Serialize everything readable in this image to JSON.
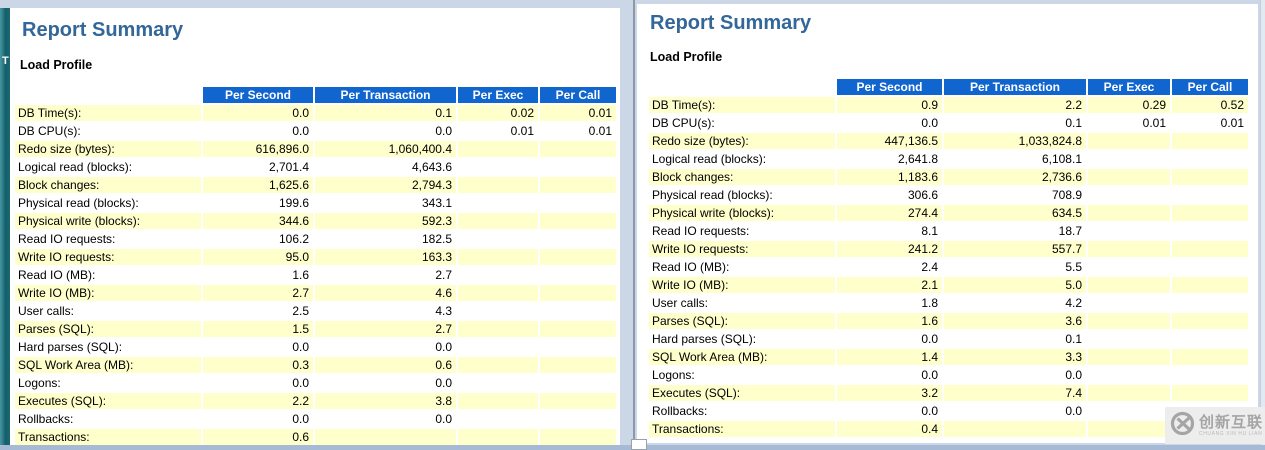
{
  "left_report": {
    "title": "Report Summary",
    "section_title": "Load Profile",
    "columns": [
      "Per Second",
      "Per Transaction",
      "Per Exec",
      "Per Call"
    ],
    "rows": [
      {
        "label": "DB Time(s):",
        "values": [
          "0.0",
          "0.1",
          "0.02",
          "0.01"
        ]
      },
      {
        "label": "DB CPU(s):",
        "values": [
          "0.0",
          "0.0",
          "0.01",
          "0.01"
        ]
      },
      {
        "label": "Redo size (bytes):",
        "values": [
          "616,896.0",
          "1,060,400.4",
          "",
          ""
        ]
      },
      {
        "label": "Logical read (blocks):",
        "values": [
          "2,701.4",
          "4,643.6",
          "",
          ""
        ]
      },
      {
        "label": "Block changes:",
        "values": [
          "1,625.6",
          "2,794.3",
          "",
          ""
        ]
      },
      {
        "label": "Physical read (blocks):",
        "values": [
          "199.6",
          "343.1",
          "",
          ""
        ]
      },
      {
        "label": "Physical write (blocks):",
        "values": [
          "344.6",
          "592.3",
          "",
          ""
        ]
      },
      {
        "label": "Read IO requests:",
        "values": [
          "106.2",
          "182.5",
          "",
          ""
        ]
      },
      {
        "label": "Write IO requests:",
        "values": [
          "95.0",
          "163.3",
          "",
          ""
        ]
      },
      {
        "label": "Read IO (MB):",
        "values": [
          "1.6",
          "2.7",
          "",
          ""
        ]
      },
      {
        "label": "Write IO (MB):",
        "values": [
          "2.7",
          "4.6",
          "",
          ""
        ]
      },
      {
        "label": "User calls:",
        "values": [
          "2.5",
          "4.3",
          "",
          ""
        ]
      },
      {
        "label": "Parses (SQL):",
        "values": [
          "1.5",
          "2.7",
          "",
          ""
        ]
      },
      {
        "label": "Hard parses (SQL):",
        "values": [
          "0.0",
          "0.0",
          "",
          ""
        ]
      },
      {
        "label": "SQL Work Area (MB):",
        "values": [
          "0.3",
          "0.6",
          "",
          ""
        ]
      },
      {
        "label": "Logons:",
        "values": [
          "0.0",
          "0.0",
          "",
          ""
        ]
      },
      {
        "label": "Executes (SQL):",
        "values": [
          "2.2",
          "3.8",
          "",
          ""
        ]
      },
      {
        "label": "Rollbacks:",
        "values": [
          "0.0",
          "0.0",
          "",
          ""
        ]
      },
      {
        "label": "Transactions:",
        "values": [
          "0.6",
          "",
          "",
          ""
        ]
      }
    ]
  },
  "right_report": {
    "title": "Report Summary",
    "section_title": "Load Profile",
    "columns": [
      "Per Second",
      "Per Transaction",
      "Per Exec",
      "Per Call"
    ],
    "rows": [
      {
        "label": "DB Time(s):",
        "values": [
          "0.9",
          "2.2",
          "0.29",
          "0.52"
        ]
      },
      {
        "label": "DB CPU(s):",
        "values": [
          "0.0",
          "0.1",
          "0.01",
          "0.01"
        ]
      },
      {
        "label": "Redo size (bytes):",
        "values": [
          "447,136.5",
          "1,033,824.8",
          "",
          ""
        ]
      },
      {
        "label": "Logical read (blocks):",
        "values": [
          "2,641.8",
          "6,108.1",
          "",
          ""
        ]
      },
      {
        "label": "Block changes:",
        "values": [
          "1,183.6",
          "2,736.6",
          "",
          ""
        ]
      },
      {
        "label": "Physical read (blocks):",
        "values": [
          "306.6",
          "708.9",
          "",
          ""
        ]
      },
      {
        "label": "Physical write (blocks):",
        "values": [
          "274.4",
          "634.5",
          "",
          ""
        ]
      },
      {
        "label": "Read IO requests:",
        "values": [
          "8.1",
          "18.7",
          "",
          ""
        ]
      },
      {
        "label": "Write IO requests:",
        "values": [
          "241.2",
          "557.7",
          "",
          ""
        ]
      },
      {
        "label": "Read IO (MB):",
        "values": [
          "2.4",
          "5.5",
          "",
          ""
        ]
      },
      {
        "label": "Write IO (MB):",
        "values": [
          "2.1",
          "5.0",
          "",
          ""
        ]
      },
      {
        "label": "User calls:",
        "values": [
          "1.8",
          "4.2",
          "",
          ""
        ]
      },
      {
        "label": "Parses (SQL):",
        "values": [
          "1.6",
          "3.6",
          "",
          ""
        ]
      },
      {
        "label": "Hard parses (SQL):",
        "values": [
          "0.0",
          "0.1",
          "",
          ""
        ]
      },
      {
        "label": "SQL Work Area (MB):",
        "values": [
          "1.4",
          "3.3",
          "",
          ""
        ]
      },
      {
        "label": "Logons:",
        "values": [
          "0.0",
          "0.0",
          "",
          ""
        ]
      },
      {
        "label": "Executes (SQL):",
        "values": [
          "3.2",
          "7.4",
          "",
          ""
        ]
      },
      {
        "label": "Rollbacks:",
        "values": [
          "0.0",
          "0.0",
          "",
          ""
        ]
      },
      {
        "label": "Transactions:",
        "values": [
          "0.4",
          "",
          "",
          ""
        ]
      }
    ]
  },
  "sidebar": {
    "truncated_text": "T"
  },
  "watermark": {
    "logo_icon": "circle-x-icon",
    "name": "创新互联",
    "subtitle": "CHUANG XIN HU LIAN"
  },
  "colors": {
    "header_bg": "#1065CE",
    "row_alt_bg": "#FFFFCC",
    "title_blue": "#336699",
    "accent_teal": "#17646F",
    "page_bg": "#CBD7E6",
    "scrollbar": "#A6BAD6"
  }
}
